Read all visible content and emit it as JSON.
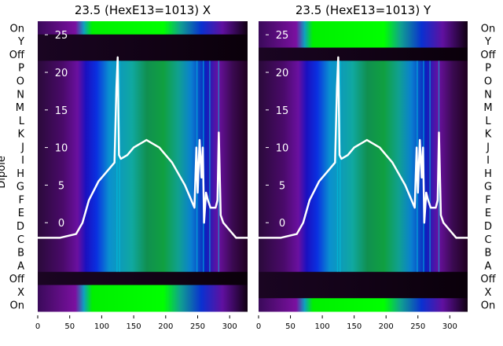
{
  "chart_data": [
    {
      "type": "heatmap",
      "title": "23.5 (HexE13=1013) X",
      "ylabel": "Dipole",
      "row_labels": [
        "On",
        "Y",
        "Off",
        "P",
        "O",
        "N",
        "M",
        "L",
        "K",
        "J",
        "I",
        "H",
        "G",
        "F",
        "E",
        "D",
        "C",
        "B",
        "A",
        "Off",
        "X",
        "On"
      ],
      "dark_rows": [
        1,
        2,
        19
      ],
      "xlim": [
        0,
        328
      ],
      "xticks": [
        0,
        50,
        100,
        150,
        200,
        250,
        300
      ],
      "overlay": {
        "type": "line",
        "ylim": [
          -11.8,
          26.8
        ],
        "yticks": [
          0,
          5,
          10,
          15,
          20,
          25
        ],
        "x": [
          0,
          35,
          60,
          70,
          80,
          95,
          110,
          120,
          123,
          125,
          127,
          130,
          140,
          150,
          160,
          170,
          180,
          190,
          200,
          210,
          220,
          230,
          240,
          245,
          248,
          250,
          253,
          256,
          258,
          260,
          263,
          266,
          270,
          278,
          281,
          283,
          286,
          290,
          300,
          310,
          328
        ],
        "y": [
          -2,
          -2,
          -1.5,
          0,
          3,
          5.5,
          7,
          8,
          18,
          22,
          9,
          8.5,
          9,
          10,
          10.5,
          11,
          10.5,
          10,
          9,
          8,
          6.5,
          5,
          3,
          2,
          10,
          4,
          11,
          6,
          10,
          0,
          4,
          3,
          2,
          2,
          3,
          12,
          1,
          0,
          -1,
          -2,
          -2
        ]
      }
    },
    {
      "type": "heatmap",
      "title": "23.5 (HexE13=1013) Y",
      "ylabel": "Dipole",
      "row_labels": [
        "On",
        "Y",
        "Off",
        "P",
        "O",
        "N",
        "M",
        "L",
        "K",
        "J",
        "I",
        "H",
        "G",
        "F",
        "E",
        "D",
        "C",
        "B",
        "A",
        "Off",
        "X",
        "On"
      ],
      "dark_rows": [
        2,
        19,
        20
      ],
      "xlim": [
        0,
        328
      ],
      "xticks": [
        0,
        50,
        100,
        150,
        200,
        250,
        300
      ],
      "overlay": {
        "type": "line",
        "ylim": [
          -11.8,
          26.8
        ],
        "yticks": [
          0,
          5,
          10,
          15,
          20,
          25
        ],
        "x": [
          0,
          35,
          60,
          70,
          80,
          95,
          110,
          120,
          123,
          125,
          127,
          130,
          140,
          150,
          160,
          170,
          180,
          190,
          200,
          210,
          220,
          230,
          240,
          245,
          248,
          250,
          253,
          256,
          258,
          260,
          263,
          266,
          270,
          278,
          281,
          283,
          286,
          290,
          300,
          310,
          328
        ],
        "y": [
          -2,
          -2,
          -1.5,
          0,
          3,
          5.5,
          7,
          8,
          18,
          22,
          9,
          8.5,
          9,
          10,
          10.5,
          11,
          10.5,
          10,
          9,
          8,
          6.5,
          5,
          3,
          2,
          10,
          4,
          11,
          6,
          10,
          0,
          4,
          3,
          2,
          2,
          3,
          12,
          1,
          0,
          -1,
          -2,
          -2
        ]
      }
    }
  ]
}
